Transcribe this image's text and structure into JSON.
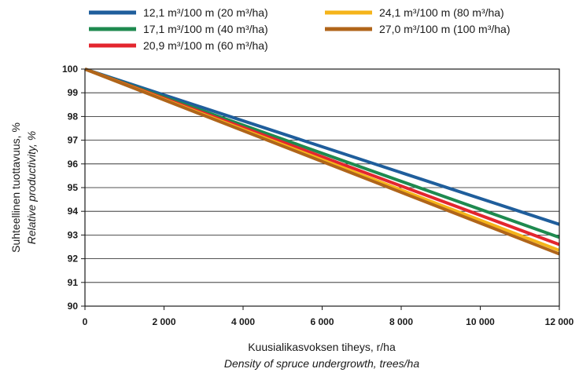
{
  "chart_data": {
    "type": "line",
    "xlabel": "Kuusialikasvoksen tiheys, r/ha",
    "xlabel_en": "Density of spruce undergrowth, trees/ha",
    "ylabel": "Suhteellinen tuottavuus, %",
    "ylabel_en": "Relative productivity, %",
    "xlim": [
      0,
      12000
    ],
    "ylim": [
      90,
      100
    ],
    "x_ticks": [
      0,
      2000,
      4000,
      6000,
      8000,
      10000,
      12000
    ],
    "x_tick_labels": [
      "0",
      "2 000",
      "4 000",
      "6 000",
      "8 000",
      "10 000",
      "12 000"
    ],
    "y_ticks": [
      90,
      91,
      92,
      93,
      94,
      95,
      96,
      97,
      98,
      99,
      100
    ],
    "y_tick_labels": [
      "90",
      "91",
      "92",
      "93",
      "94",
      "95",
      "96",
      "97",
      "98",
      "99",
      "100"
    ],
    "grid": "horizontal",
    "legend_position": "top",
    "series": [
      {
        "name": "12,1 m³/100 m (20 m³/ha)",
        "color": "#1f5e9c",
        "x": [
          0,
          12000
        ],
        "y": [
          100,
          93.45
        ]
      },
      {
        "name": "17,1 m³/100 m (40 m³/ha)",
        "color": "#1e8a4f",
        "x": [
          0,
          12000
        ],
        "y": [
          100,
          92.9
        ]
      },
      {
        "name": "20,9 m³/100 m (60 m³/ha)",
        "color": "#e3262e",
        "x": [
          0,
          12000
        ],
        "y": [
          100,
          92.6
        ]
      },
      {
        "name": "24,1 m³/100 m (80 m³/ha)",
        "color": "#f5b41a",
        "x": [
          0,
          12000
        ],
        "y": [
          100,
          92.35
        ]
      },
      {
        "name": "27,0 m³/100 m (100 m³/ha)",
        "color": "#b0651a",
        "x": [
          0,
          12000
        ],
        "y": [
          100,
          92.2
        ]
      }
    ]
  }
}
